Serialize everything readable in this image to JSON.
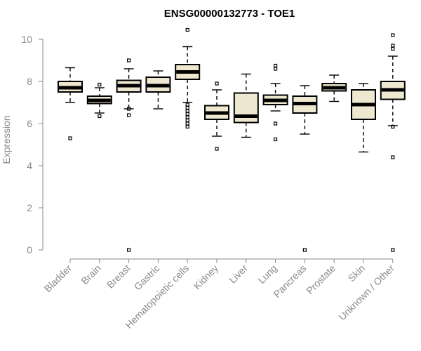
{
  "chart_data": {
    "type": "boxplot",
    "title": "ENSG00000132773 - TOE1",
    "ylabel": "Expression",
    "xlabel": "",
    "ylim": [
      0,
      10.5
    ],
    "yticks": [
      0,
      2,
      4,
      6,
      8,
      10
    ],
    "box_fill": "#efe8d0",
    "box_stroke": "#000000",
    "categories": [
      "Bladder",
      "Brain",
      "Breast",
      "Gastric",
      "Hematopoietic cells",
      "Kidney",
      "Liver",
      "Lung",
      "Pancreas",
      "Prostate",
      "Skin",
      "Unknown / Other"
    ],
    "boxes": [
      {
        "label": "Bladder",
        "lo": 7.0,
        "q1": 7.5,
        "median": 7.7,
        "q3": 8.0,
        "hi": 8.65,
        "outliers": [
          5.3
        ]
      },
      {
        "label": "Brain",
        "lo": 6.5,
        "q1": 6.95,
        "median": 7.1,
        "q3": 7.3,
        "hi": 7.7,
        "outliers": [
          6.35,
          7.85
        ]
      },
      {
        "label": "Breast",
        "lo": 6.7,
        "q1": 7.5,
        "median": 7.8,
        "q3": 8.05,
        "hi": 8.6,
        "outliers": [
          0.0,
          6.4,
          6.7,
          9.0
        ]
      },
      {
        "label": "Gastric",
        "lo": 6.7,
        "q1": 7.5,
        "median": 7.8,
        "q3": 8.2,
        "hi": 8.5,
        "outliers": []
      },
      {
        "label": "Hematopoietic cells",
        "lo": 7.0,
        "q1": 8.1,
        "median": 8.45,
        "q3": 8.8,
        "hi": 9.65,
        "outliers": [
          5.85,
          6.0,
          6.15,
          6.3,
          6.45,
          6.6,
          6.75,
          6.9,
          10.45
        ]
      },
      {
        "label": "Kidney",
        "lo": 5.4,
        "q1": 6.2,
        "median": 6.5,
        "q3": 6.85,
        "hi": 7.6,
        "outliers": [
          4.8,
          7.9
        ]
      },
      {
        "label": "Liver",
        "lo": 5.35,
        "q1": 6.05,
        "median": 6.35,
        "q3": 7.45,
        "hi": 8.35,
        "outliers": []
      },
      {
        "label": "Lung",
        "lo": 6.6,
        "q1": 6.9,
        "median": 7.1,
        "q3": 7.35,
        "hi": 7.9,
        "outliers": [
          5.25,
          6.0,
          8.6,
          8.75
        ]
      },
      {
        "label": "Pancreas",
        "lo": 5.5,
        "q1": 6.5,
        "median": 6.95,
        "q3": 7.3,
        "hi": 7.8,
        "outliers": [
          0.0
        ]
      },
      {
        "label": "Prostate",
        "lo": 7.05,
        "q1": 7.55,
        "median": 7.7,
        "q3": 7.9,
        "hi": 8.3,
        "outliers": []
      },
      {
        "label": "Skin",
        "lo": 4.65,
        "q1": 6.2,
        "median": 6.9,
        "q3": 7.6,
        "hi": 7.9,
        "outliers": []
      },
      {
        "label": "Unknown / Other",
        "lo": 5.9,
        "q1": 7.15,
        "median": 7.6,
        "q3": 8.0,
        "hi": 9.2,
        "outliers": [
          0.0,
          4.4,
          5.85,
          9.55,
          9.7,
          10.2
        ]
      }
    ]
  }
}
